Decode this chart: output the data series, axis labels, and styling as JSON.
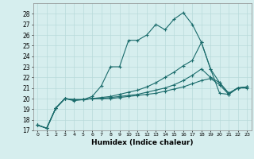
{
  "xlabel": "Humidex (Indice chaleur)",
  "bg_color": "#d6eeee",
  "line_color": "#1a6b6b",
  "xlim": [
    -0.5,
    23.5
  ],
  "ylim": [
    17,
    29
  ],
  "yticks": [
    17,
    18,
    19,
    20,
    21,
    22,
    23,
    24,
    25,
    26,
    27,
    28
  ],
  "xticks": [
    0,
    1,
    2,
    3,
    4,
    5,
    6,
    7,
    8,
    9,
    10,
    11,
    12,
    13,
    14,
    15,
    16,
    17,
    18,
    19,
    20,
    21,
    22,
    23
  ],
  "series": [
    [
      17.5,
      17.2,
      19.1,
      20.0,
      19.8,
      19.9,
      20.2,
      21.2,
      23.0,
      23.0,
      25.5,
      25.5,
      26.0,
      27.0,
      26.5,
      27.5,
      28.1,
      27.0,
      25.3,
      22.8,
      20.5,
      20.4,
      21.0,
      21.0
    ],
    [
      17.5,
      17.2,
      19.1,
      20.0,
      19.9,
      19.9,
      20.0,
      20.1,
      20.2,
      20.4,
      20.6,
      20.8,
      21.1,
      21.5,
      22.0,
      22.5,
      23.1,
      23.6,
      25.3,
      22.8,
      21.5,
      20.5,
      21.0,
      21.1
    ],
    [
      17.5,
      17.2,
      19.1,
      20.0,
      19.9,
      19.9,
      20.0,
      20.0,
      20.1,
      20.2,
      20.3,
      20.4,
      20.6,
      20.8,
      21.0,
      21.3,
      21.7,
      22.2,
      22.8,
      22.0,
      21.5,
      20.5,
      21.0,
      21.1
    ],
    [
      17.5,
      17.2,
      19.1,
      20.0,
      19.9,
      19.9,
      20.0,
      20.0,
      20.0,
      20.1,
      20.2,
      20.3,
      20.4,
      20.5,
      20.7,
      20.9,
      21.1,
      21.4,
      21.7,
      21.9,
      21.3,
      20.4,
      21.0,
      21.1
    ]
  ]
}
